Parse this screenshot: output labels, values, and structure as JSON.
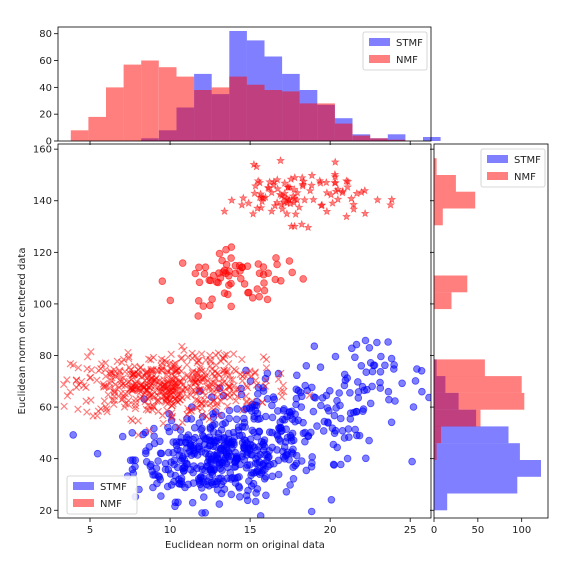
{
  "chart_data": {
    "type": "scatter",
    "xlabel": "Euclidean norm on original data",
    "ylabel": "Euclidean norm on centered data",
    "xlim": [
      3,
      26.3
    ],
    "ylim": [
      17,
      162
    ],
    "xticks": [
      5,
      10,
      15,
      20,
      25
    ],
    "yticks": [
      20,
      40,
      60,
      80,
      100,
      120,
      140,
      160
    ],
    "legend": {
      "entries": [
        "STMF",
        "NMF"
      ],
      "placement": "lower-left"
    },
    "colors": {
      "STMF": "#0000ff",
      "NMF": "#ff0000"
    },
    "series": [
      {
        "name": "STMF",
        "marker": "circle",
        "clusters": [
          {
            "cx": 13.0,
            "cy": 40,
            "sx": 2.6,
            "sy": 8,
            "n": 380
          },
          {
            "cx": 17.5,
            "cy": 54,
            "sx": 3.2,
            "sy": 9,
            "n": 170
          },
          {
            "cx": 22.5,
            "cy": 72,
            "sx": 2.2,
            "sy": 8,
            "n": 45
          }
        ]
      },
      {
        "name": "NMF",
        "marker": "x",
        "clusters": [
          {
            "cx": 9.2,
            "cy": 68,
            "sx": 2.6,
            "sy": 6,
            "n": 420
          },
          {
            "cx": 13.5,
            "cy": 71,
            "sx": 2.0,
            "sy": 6,
            "n": 80
          }
        ]
      },
      {
        "name": "NMF",
        "marker": "circle",
        "clusters": [
          {
            "cx": 14.3,
            "cy": 110,
            "sx": 2.0,
            "sy": 5,
            "n": 65
          }
        ]
      },
      {
        "name": "NMF",
        "marker": "star",
        "clusters": [
          {
            "cx": 17.8,
            "cy": 142,
            "sx": 2.2,
            "sy": 5,
            "n": 105
          }
        ]
      }
    ],
    "top_histogram": {
      "xlim": [
        3,
        26.3
      ],
      "ylim": [
        0,
        85
      ],
      "yticks": [
        0,
        20,
        40,
        60,
        80
      ],
      "bin_start": 3.8,
      "bin_width": 1.1,
      "STMF": [
        0,
        0,
        0,
        0,
        2,
        8,
        25,
        50,
        35,
        82,
        75,
        63,
        50,
        38,
        27,
        17,
        5,
        2,
        5,
        0,
        3
      ],
      "NMF": [
        8,
        18,
        40,
        57,
        60,
        55,
        48,
        38,
        40,
        48,
        42,
        38,
        37,
        28,
        28,
        13,
        4,
        2,
        1,
        0,
        0
      ]
    },
    "right_histogram": {
      "ylim": [
        17,
        162
      ],
      "xlim": [
        0,
        130
      ],
      "xticks": [
        0,
        50,
        100
      ],
      "bin_start": 20,
      "bin_width": 6.5,
      "STMF": [
        15,
        95,
        122,
        98,
        85,
        48,
        28,
        13,
        3,
        0,
        0,
        0,
        0,
        0,
        0,
        0,
        0,
        0,
        0,
        0,
        0
      ],
      "NMF": [
        0,
        0,
        0,
        3,
        8,
        53,
        103,
        100,
        58,
        0,
        0,
        0,
        20,
        38,
        0,
        0,
        0,
        10,
        47,
        25,
        3
      ]
    }
  }
}
